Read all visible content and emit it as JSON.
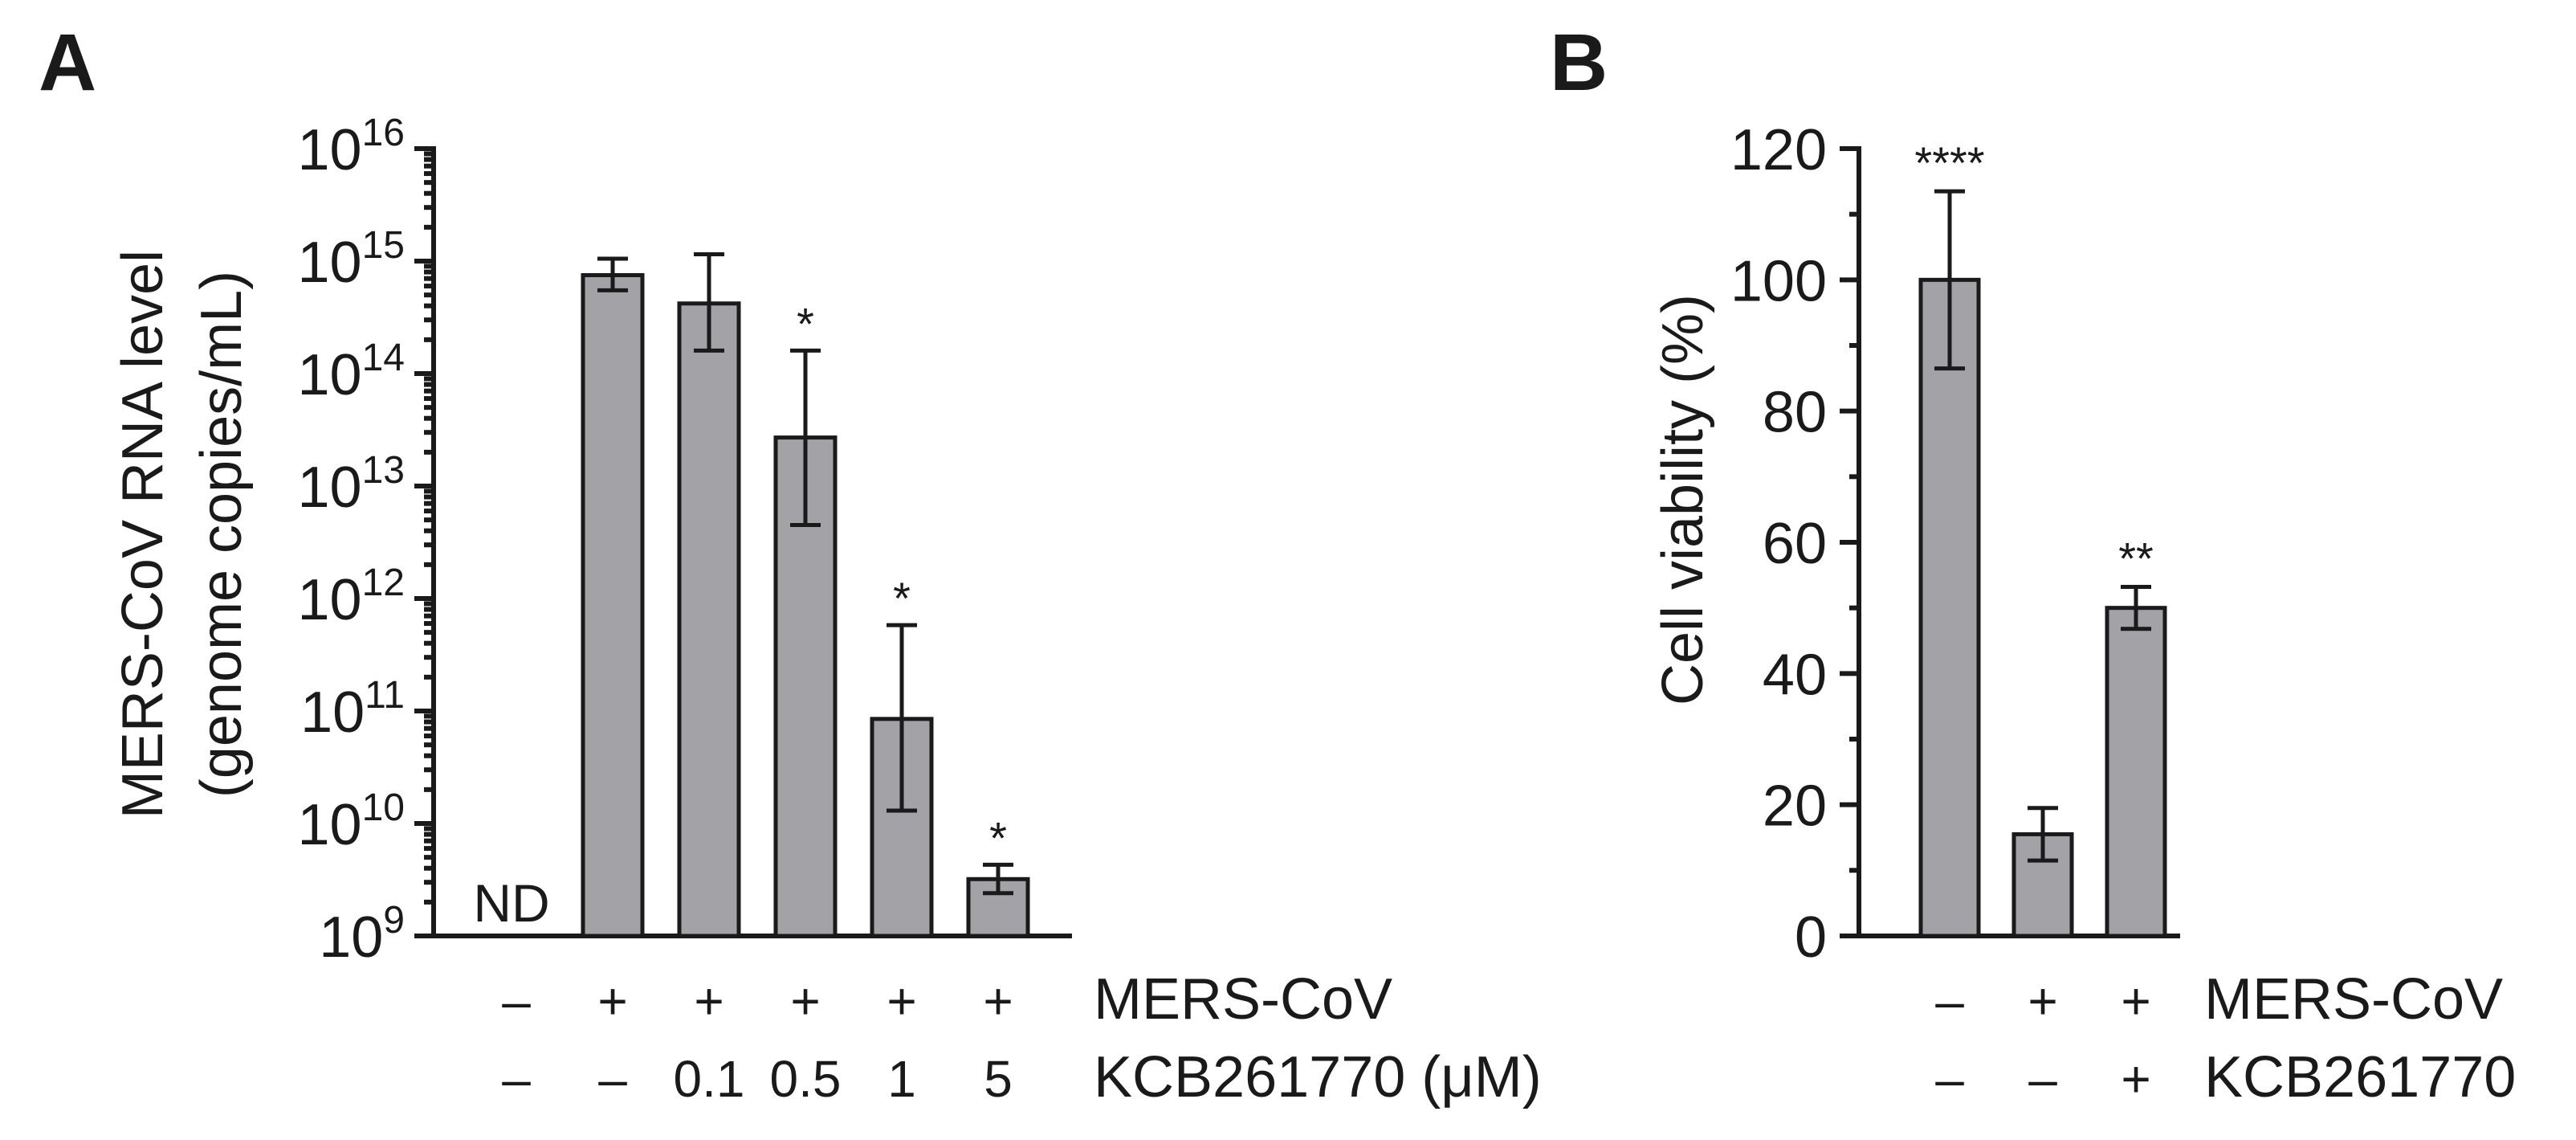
{
  "chart_data": [
    {
      "panel": "A",
      "type": "bar",
      "yscale": "log10",
      "ylabel_line1": "MERS-CoV RNA level",
      "ylabel_line2": "(genome copies/mL)",
      "ylim": [
        1000000000.0,
        1e+16
      ],
      "yticks": [
        {
          "base": "10",
          "exp": "9",
          "value": 1000000000.0
        },
        {
          "base": "10",
          "exp": "10",
          "value": 10000000000.0
        },
        {
          "base": "10",
          "exp": "11",
          "value": 100000000000.0
        },
        {
          "base": "10",
          "exp": "12",
          "value": 1000000000000.0
        },
        {
          "base": "10",
          "exp": "13",
          "value": 10000000000000.0
        },
        {
          "base": "10",
          "exp": "14",
          "value": 100000000000000.0
        },
        {
          "base": "10",
          "exp": "15",
          "value": 1000000000000000.0
        },
        {
          "base": "10",
          "exp": "16",
          "value": 1e+16
        }
      ],
      "row_labels": [
        "MERS-CoV",
        "KCB261770 (μM)"
      ],
      "groups": [
        {
          "mers": "–",
          "kcb": "–",
          "value": null,
          "err_low": null,
          "err_high": null,
          "annotation": "ND",
          "sig": ""
        },
        {
          "mers": "+",
          "kcb": "–",
          "value": 750000000000000.0,
          "err_low": 550000000000000.0,
          "err_high": 1050000000000000.0,
          "annotation": "",
          "sig": ""
        },
        {
          "mers": "+",
          "kcb": "0.1",
          "value": 420000000000000.0,
          "err_low": 160000000000000.0,
          "err_high": 1150000000000000.0,
          "annotation": "",
          "sig": ""
        },
        {
          "mers": "+",
          "kcb": "0.5",
          "value": 27000000000000.0,
          "err_low": 4500000000000.0,
          "err_high": 160000000000000.0,
          "annotation": "",
          "sig": "*"
        },
        {
          "mers": "+",
          "kcb": "1",
          "value": 85000000000.0,
          "err_low": 13000000000.0,
          "err_high": 580000000000.0,
          "annotation": "",
          "sig": "*"
        },
        {
          "mers": "+",
          "kcb": "5",
          "value": 3200000000.0,
          "err_low": 2400000000.0,
          "err_high": 4300000000.0,
          "annotation": "",
          "sig": "*"
        }
      ]
    },
    {
      "panel": "B",
      "type": "bar",
      "yscale": "linear",
      "ylabel": "Cell viability (%)",
      "ylim": [
        0,
        120
      ],
      "yticks": [
        "0",
        "20",
        "40",
        "60",
        "80",
        "100",
        "120"
      ],
      "row_labels": [
        "MERS-CoV",
        "KCB261770"
      ],
      "groups": [
        {
          "mers": "–",
          "kcb": "–",
          "value": 100,
          "err": 13.5,
          "sig": "****"
        },
        {
          "mers": "+",
          "kcb": "–",
          "value": 15.5,
          "err": 4,
          "sig": ""
        },
        {
          "mers": "+",
          "kcb": "+",
          "value": 50,
          "err": 3.2,
          "sig": "**"
        }
      ]
    }
  ]
}
